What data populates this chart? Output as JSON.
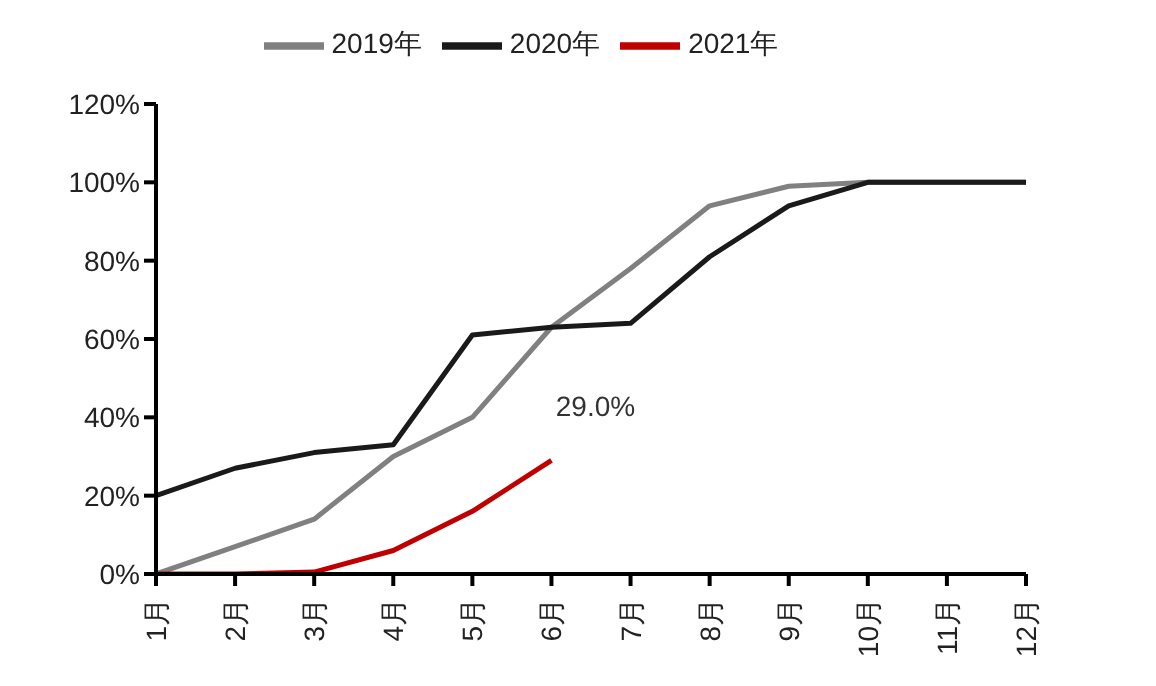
{
  "chart_data": {
    "type": "line",
    "categories": [
      "1月",
      "2月",
      "3月",
      "4月",
      "5月",
      "6月",
      "7月",
      "8月",
      "9月",
      "10月",
      "11月",
      "12月"
    ],
    "series": [
      {
        "name": "2019年",
        "color": "#808080",
        "values": [
          0,
          7,
          14,
          30,
          40,
          63,
          78,
          94,
          99,
          100,
          100,
          100
        ]
      },
      {
        "name": "2020年",
        "color": "#1a1a1a",
        "values": [
          20,
          27,
          31,
          33,
          61,
          63,
          64,
          81,
          94,
          100,
          100,
          100
        ]
      },
      {
        "name": "2021年",
        "color": "#c00000",
        "values": [
          0,
          0,
          0.5,
          6,
          16,
          29,
          null,
          null,
          null,
          null,
          null,
          null
        ]
      }
    ],
    "ylim": [
      0,
      120
    ],
    "yticks": [
      {
        "value": 0,
        "label": "0%"
      },
      {
        "value": 20,
        "label": "20%"
      },
      {
        "value": 40,
        "label": "40%"
      },
      {
        "value": 60,
        "label": "60%"
      },
      {
        "value": 80,
        "label": "80%"
      },
      {
        "value": 100,
        "label": "100%"
      },
      {
        "value": 120,
        "label": "120%"
      }
    ],
    "annotations": [
      {
        "text": "29.0%",
        "x": "6月",
        "y": 29
      }
    ],
    "legend": "top",
    "grid": false,
    "marker": "none",
    "line_style": "solid"
  }
}
